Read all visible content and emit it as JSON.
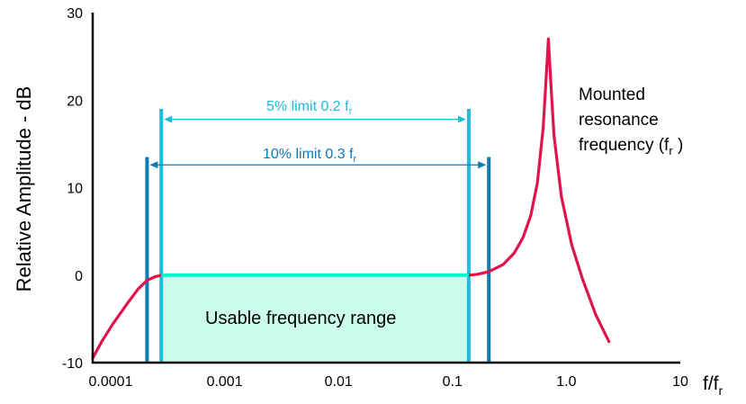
{
  "chart_data": {
    "type": "line",
    "xlabel": "f/f",
    "xlabel_sub": "r",
    "ylabel": "Relative Amplitude - dB",
    "x_scale": "log",
    "xlim": [
      0.0001,
      10
    ],
    "ylim": [
      -10,
      30
    ],
    "x_ticks": [
      {
        "value": 0.0001,
        "label": "0.0001"
      },
      {
        "value": 0.001,
        "label": "0.001"
      },
      {
        "value": 0.01,
        "label": "0.01"
      },
      {
        "value": 0.1,
        "label": "0.1"
      },
      {
        "value": 1,
        "label": "1.0"
      },
      {
        "value": 10,
        "label": "10"
      }
    ],
    "y_ticks": [
      {
        "value": -10,
        "label": "-10"
      },
      {
        "value": 0,
        "label": "0"
      },
      {
        "value": 10,
        "label": "10"
      },
      {
        "value": 20,
        "label": "20"
      },
      {
        "value": 30,
        "label": "30"
      }
    ],
    "grid": false,
    "series": [
      {
        "color": "#e0144c",
        "points": [
          [
            0.0001,
            -9.5
          ],
          [
            0.00012,
            -7.6
          ],
          [
            0.00015,
            -5.6
          ],
          [
            0.0002,
            -3.3
          ],
          [
            0.00025,
            -1.6
          ],
          [
            0.0003,
            -0.6
          ],
          [
            0.00035,
            -0.2
          ],
          [
            0.0004,
            0.0
          ],
          [
            0.2,
            0.0
          ],
          [
            0.24,
            0.1
          ],
          [
            0.3,
            0.4
          ],
          [
            0.4,
            1.2
          ],
          [
            0.5,
            2.5
          ],
          [
            0.6,
            4.3
          ],
          [
            0.7,
            6.8
          ],
          [
            0.8,
            10.5
          ],
          [
            0.9,
            16.8
          ],
          [
            0.95,
            22.0
          ],
          [
            1.0,
            27.0
          ],
          [
            1.05,
            22.0
          ],
          [
            1.12,
            16.0
          ],
          [
            1.3,
            9.0
          ],
          [
            1.6,
            3.5
          ],
          [
            2.0,
            -0.5
          ],
          [
            2.6,
            -4.5
          ],
          [
            3.4,
            -7.6
          ]
        ]
      }
    ],
    "usable_range": {
      "from": 0.0004,
      "to": 0.2,
      "level": 0,
      "color": "#00f5c8",
      "fill": "#ccfcee"
    },
    "limits": [
      {
        "label": "5% limit 0.2 f",
        "sub": "r",
        "from": 0.0004,
        "to": 0.2,
        "y_line": [
          -10,
          19
        ],
        "arrow_y": 17.8,
        "color": "#1bbcdc"
      },
      {
        "label": "10% limit 0.3 f",
        "sub": "r",
        "from": 0.0003,
        "to": 0.3,
        "y_line": [
          -10,
          13.5
        ],
        "arrow_y": 12.6,
        "color": "#0b7bb5"
      }
    ],
    "annotations": {
      "usable_label": "Usable frequency range",
      "resonance_lines": [
        "Mounted",
        "resonance",
        "frequency (f"
      ],
      "resonance_sub": "r",
      "resonance_tail": " )"
    }
  }
}
